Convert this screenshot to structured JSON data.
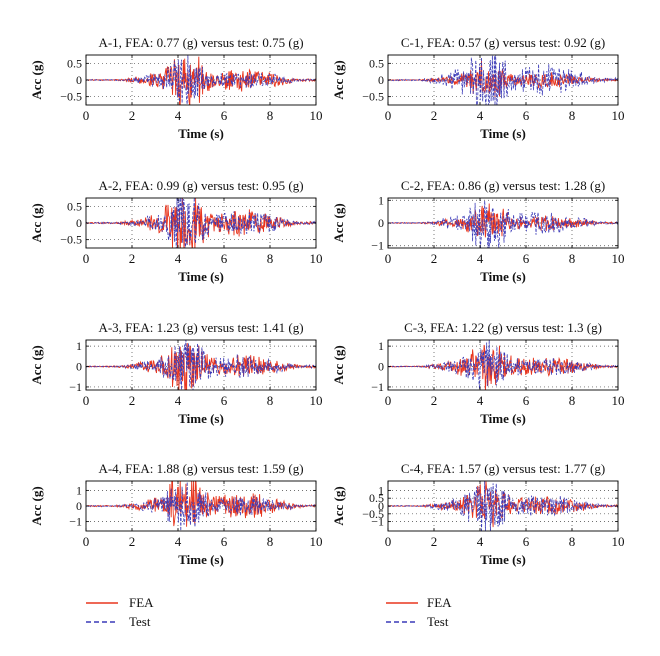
{
  "chart_data": [
    {
      "type": "line",
      "title": "A-1, FEA: 0.77 (g) versus test: 0.75 (g)",
      "xlabel": "Time (s)",
      "ylabel": "Acc (g)",
      "xlim": [
        0,
        10
      ],
      "ylim": [
        -0.75,
        0.75
      ],
      "xticks": [
        0,
        2,
        4,
        6,
        8,
        10
      ],
      "yticks": [
        0.5,
        0,
        -0.5
      ],
      "xtick_labels": [
        "0",
        "2",
        "4",
        "6",
        "8",
        "10"
      ],
      "ytick_labels": [
        "0.5",
        "0",
        "−0.5"
      ],
      "grid": true,
      "series": [
        {
          "name": "FEA",
          "peak": 0.77
        },
        {
          "name": "Test",
          "peak": 0.75
        }
      ]
    },
    {
      "type": "line",
      "title": "C-1, FEA: 0.57 (g) versus test: 0.92 (g)",
      "xlabel": "Time (s)",
      "ylabel": "Acc (g)",
      "xlim": [
        0,
        10
      ],
      "ylim": [
        -0.75,
        0.75
      ],
      "xticks": [
        0,
        2,
        4,
        6,
        8,
        10
      ],
      "yticks": [
        0.5,
        0,
        -0.5
      ],
      "xtick_labels": [
        "0",
        "2",
        "4",
        "6",
        "8",
        "10"
      ],
      "ytick_labels": [
        "0.5",
        "0",
        "−0.5"
      ],
      "grid": true,
      "series": [
        {
          "name": "FEA",
          "peak": 0.57
        },
        {
          "name": "Test",
          "peak": 0.92
        }
      ]
    },
    {
      "type": "line",
      "title": "A-2, FEA: 0.99 (g) versus test: 0.95 (g)",
      "xlabel": "Time (s)",
      "ylabel": "Acc (g)",
      "xlim": [
        0,
        10
      ],
      "ylim": [
        -0.75,
        0.75
      ],
      "xticks": [
        0,
        2,
        4,
        6,
        8,
        10
      ],
      "yticks": [
        0.5,
        0,
        -0.5
      ],
      "xtick_labels": [
        "0",
        "2",
        "4",
        "6",
        "8",
        "10"
      ],
      "ytick_labels": [
        "0.5",
        "0",
        "−0.5"
      ],
      "grid": true,
      "series": [
        {
          "name": "FEA",
          "peak": 0.99
        },
        {
          "name": "Test",
          "peak": 0.95
        }
      ]
    },
    {
      "type": "line",
      "title": "C-2, FEA: 0.86 (g) versus test: 1.28 (g)",
      "xlabel": "Time (s)",
      "ylabel": "Acc (g)",
      "xlim": [
        0,
        10
      ],
      "ylim": [
        -1.1,
        1.1
      ],
      "xticks": [
        0,
        2,
        4,
        6,
        8,
        10
      ],
      "yticks": [
        1,
        0,
        -1
      ],
      "xtick_labels": [
        "0",
        "2",
        "4",
        "6",
        "8",
        "10"
      ],
      "ytick_labels": [
        "1",
        "0",
        "−1"
      ],
      "grid": true,
      "series": [
        {
          "name": "FEA",
          "peak": 0.86
        },
        {
          "name": "Test",
          "peak": 1.28
        }
      ]
    },
    {
      "type": "line",
      "title": "A-3, FEA: 1.23 (g) versus test: 1.41 (g)",
      "xlabel": "Time (s)",
      "ylabel": "Acc (g)",
      "xlim": [
        0,
        10
      ],
      "ylim": [
        -1.15,
        1.3
      ],
      "xticks": [
        0,
        2,
        4,
        6,
        8,
        10
      ],
      "yticks": [
        1,
        0,
        -1
      ],
      "xtick_labels": [
        "0",
        "2",
        "4",
        "6",
        "8",
        "10"
      ],
      "ytick_labels": [
        "1",
        "0",
        "−1"
      ],
      "grid": true,
      "series": [
        {
          "name": "FEA",
          "peak": 1.23
        },
        {
          "name": "Test",
          "peak": 1.41
        }
      ]
    },
    {
      "type": "line",
      "title": "C-3, FEA: 1.22 (g) versus test: 1.3 (g)",
      "xlabel": "Time (s)",
      "ylabel": "Acc (g)",
      "xlim": [
        0,
        10
      ],
      "ylim": [
        -1.15,
        1.3
      ],
      "xticks": [
        0,
        2,
        4,
        6,
        8,
        10
      ],
      "yticks": [
        1,
        0,
        -1
      ],
      "xtick_labels": [
        "0",
        "2",
        "4",
        "6",
        "8",
        "10"
      ],
      "ytick_labels": [
        "1",
        "0",
        "−1"
      ],
      "grid": true,
      "series": [
        {
          "name": "FEA",
          "peak": 1.22
        },
        {
          "name": "Test",
          "peak": 1.3
        }
      ]
    },
    {
      "type": "line",
      "title": "A-4, FEA: 1.88 (g) versus test: 1.59 (g)",
      "xlabel": "Time (s)",
      "ylabel": "Acc (g)",
      "xlim": [
        0,
        10
      ],
      "ylim": [
        -1.6,
        1.6
      ],
      "xticks": [
        0,
        2,
        4,
        6,
        8,
        10
      ],
      "yticks": [
        1,
        0,
        -1
      ],
      "xtick_labels": [
        "0",
        "2",
        "4",
        "6",
        "8",
        "10"
      ],
      "ytick_labels": [
        "1",
        "0",
        "−1"
      ],
      "grid": true,
      "series": [
        {
          "name": "FEA",
          "peak": 1.88
        },
        {
          "name": "Test",
          "peak": 1.59
        }
      ]
    },
    {
      "type": "line",
      "title": "C-4, FEA: 1.57 (g) versus test: 1.77 (g)",
      "xlabel": "Time (s)",
      "ylabel": "Acc (g)",
      "xlim": [
        0,
        10
      ],
      "ylim": [
        -1.6,
        1.6
      ],
      "xticks": [
        0,
        2,
        4,
        6,
        8,
        10
      ],
      "yticks": [
        1,
        0.5,
        0,
        -0.5,
        -1
      ],
      "xtick_labels": [
        "0",
        "2",
        "4",
        "6",
        "8",
        "10"
      ],
      "ytick_labels": [
        "1",
        "0.5",
        "0",
        "−0.5",
        "−1"
      ],
      "grid": true,
      "series": [
        {
          "name": "FEA",
          "peak": 1.57
        },
        {
          "name": "Test",
          "peak": 1.77
        }
      ]
    }
  ],
  "legend": [
    {
      "entries": [
        {
          "label": "FEA"
        },
        {
          "label": "Test"
        }
      ]
    },
    {
      "entries": [
        {
          "label": "FEA"
        },
        {
          "label": "Test"
        }
      ]
    }
  ],
  "colors": {
    "fea": "#e8361e",
    "test": "#3a3ab8",
    "axis": "#000000",
    "grid": "#444444"
  }
}
